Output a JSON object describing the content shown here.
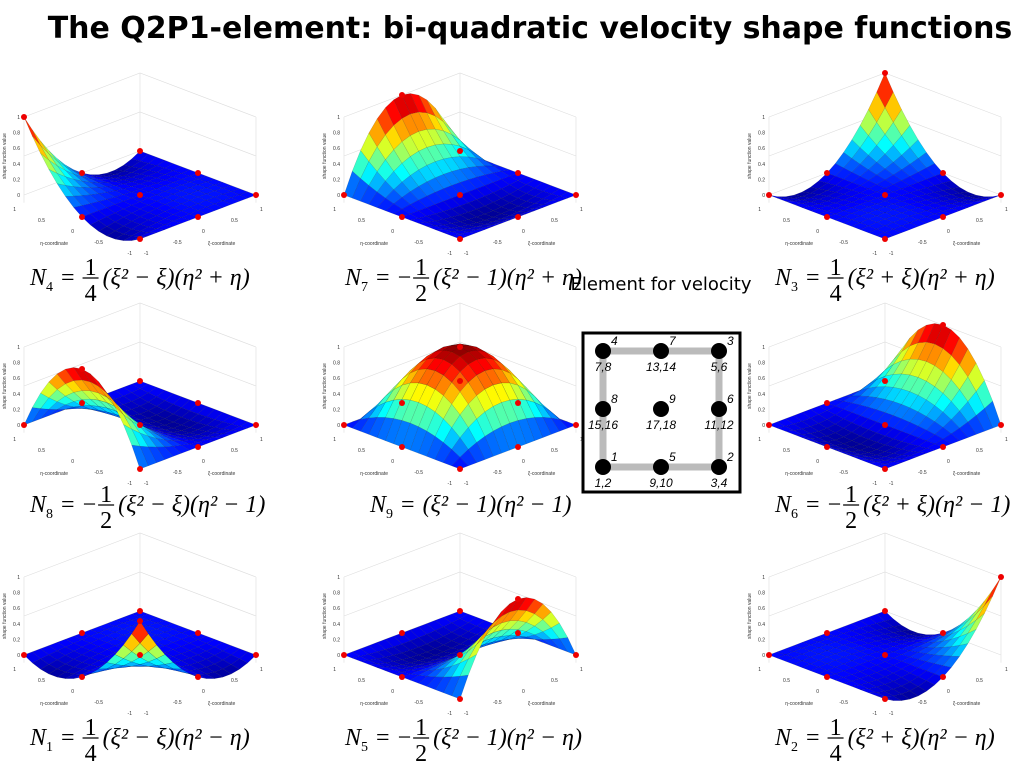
{
  "title": "The Q2P1-element: bi-quadratic velocity shape functions",
  "plot_axes": {
    "x_label": "ξ-coordinate",
    "y_label": "η-coordinate",
    "z_label": "shape function value",
    "xyticks": [
      -1,
      -0.5,
      0,
      0.5,
      1
    ],
    "zticks": [
      0,
      0.2,
      0.4,
      0.6,
      0.8,
      1
    ]
  },
  "plots": [
    {
      "formula": {
        "symbol": "N",
        "sub": "4",
        "eq": "=",
        "sign": "",
        "num": "1",
        "den": "4",
        "factors": "(ξ² − ξ)(η² + η)"
      }
    },
    {
      "formula": {
        "symbol": "N",
        "sub": "7",
        "eq": "=",
        "sign": "−",
        "num": "1",
        "den": "2",
        "factors": "(ξ² − 1)(η² + η)"
      }
    },
    {
      "formula": {
        "symbol": "N",
        "sub": "3",
        "eq": "=",
        "sign": "",
        "num": "1",
        "den": "4",
        "factors": "(ξ² + ξ)(η² + η)"
      }
    },
    {
      "formula": {
        "symbol": "N",
        "sub": "8",
        "eq": "=",
        "sign": "−",
        "num": "1",
        "den": "2",
        "factors": "(ξ² − ξ)(η² − 1)"
      }
    },
    {
      "formula": {
        "symbol": "N",
        "sub": "9",
        "eq": "=",
        "factors": "(ξ² − 1)(η² − 1)"
      }
    },
    {
      "formula": {
        "symbol": "N",
        "sub": "6",
        "eq": "=",
        "sign": "−",
        "num": "1",
        "den": "2",
        "factors": "(ξ² + ξ)(η² − 1)"
      }
    },
    {
      "formula": {
        "symbol": "N",
        "sub": "1",
        "eq": "=",
        "sign": "",
        "num": "1",
        "den": "4",
        "factors": "(ξ² − ξ)(η² − η)"
      }
    },
    {
      "formula": {
        "symbol": "N",
        "sub": "5",
        "eq": "=",
        "sign": "−",
        "num": "1",
        "den": "2",
        "factors": "(ξ² − 1)(η² − η)"
      }
    },
    {
      "formula": {
        "symbol": "N",
        "sub": "2",
        "eq": "=",
        "sign": "",
        "num": "1",
        "den": "4",
        "factors": "(ξ² + ξ)(η² − η)"
      }
    }
  ],
  "element": {
    "caption": "Element for velocity",
    "nodes": [
      {
        "number": "1",
        "dofs": "1,2"
      },
      {
        "number": "2",
        "dofs": "3,4"
      },
      {
        "number": "3",
        "dofs": "5,6"
      },
      {
        "number": "4",
        "dofs": "7,8"
      },
      {
        "number": "5",
        "dofs": "9,10"
      },
      {
        "number": "6",
        "dofs": "11,12"
      },
      {
        "number": "7",
        "dofs": "13,14"
      },
      {
        "number": "8",
        "dofs": "15,16"
      },
      {
        "number": "9",
        "dofs": "17,18"
      }
    ]
  }
}
